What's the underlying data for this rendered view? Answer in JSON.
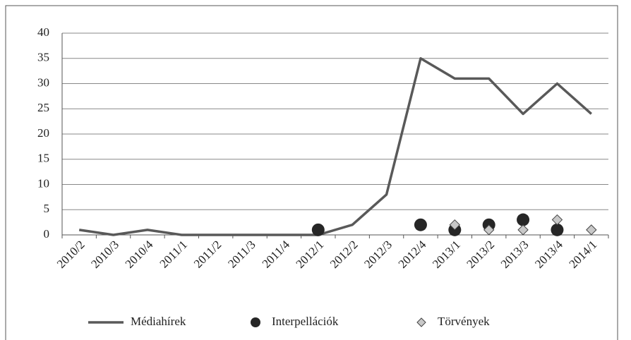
{
  "chart_data": {
    "type": "line",
    "categories": [
      "2010/2",
      "2010/3",
      "2010/4",
      "2011/1",
      "2011/2",
      "2011/3",
      "2011/4",
      "2012/1",
      "2012/2",
      "2012/3",
      "2012/4",
      "2013/1",
      "2013/2",
      "2013/3",
      "2013/4",
      "2014/1"
    ],
    "series": [
      {
        "name": "Médiahírek",
        "color": "#595959",
        "marker": "none",
        "values": [
          1,
          0,
          1,
          0,
          0,
          0,
          0,
          0,
          2,
          8,
          35,
          31,
          31,
          24,
          30,
          24
        ]
      },
      {
        "name": "Interpellációk",
        "color": "#262626",
        "marker": "circle",
        "values": [
          null,
          null,
          null,
          null,
          null,
          null,
          null,
          1,
          null,
          null,
          2,
          1,
          2,
          3,
          1,
          null
        ]
      },
      {
        "name": "Törvények",
        "color": "#c8c8c8",
        "marker": "diamond",
        "values": [
          null,
          null,
          null,
          null,
          null,
          null,
          null,
          null,
          null,
          null,
          null,
          2,
          1,
          1,
          3,
          1
        ]
      }
    ],
    "ylim": [
      0,
      40
    ],
    "yticks": [
      0,
      5,
      10,
      15,
      20,
      25,
      30,
      35,
      40
    ],
    "grid": true,
    "legend": "bottom"
  }
}
